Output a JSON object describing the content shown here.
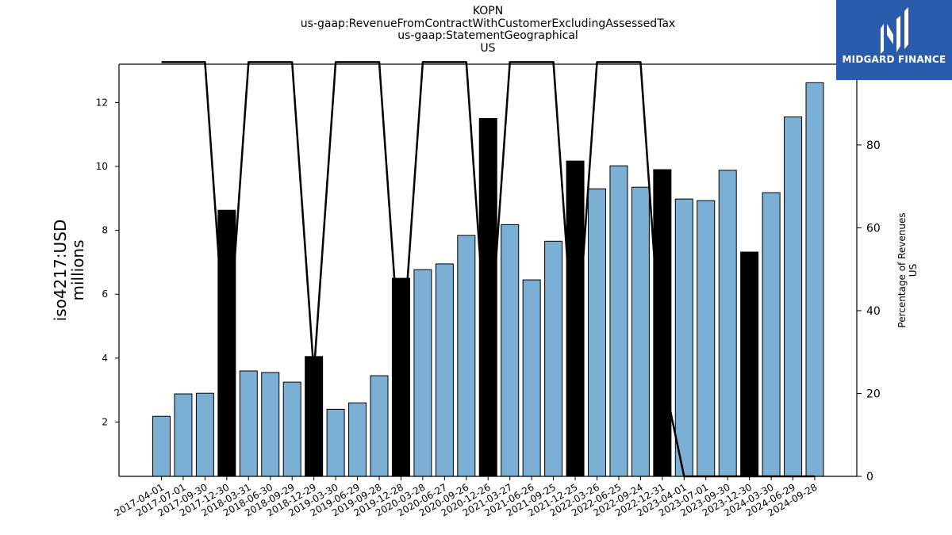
{
  "title_lines": [
    "KOPN",
    "us-gaap:RevenueFromContractWithCustomerExcludingAssessedTax",
    "us-gaap:StatementGeographical",
    "US"
  ],
  "logo": {
    "text": "MIDGARD FINANCE",
    "bg_color": "#2a5cad"
  },
  "chart_data": {
    "type": "bar",
    "ylabel": [
      "iso4217:USD",
      "millions"
    ],
    "y2label": [
      "Percentage of Revenues",
      "US"
    ],
    "ylim": [
      0.3,
      13.2
    ],
    "y2lim": [
      0,
      99.5
    ],
    "yticks": [
      2,
      4,
      6,
      8,
      10,
      12
    ],
    "y2ticks": [
      0,
      20,
      40,
      60,
      80,
      100
    ],
    "categories": [
      "2017-04-01",
      "2017-07-01",
      "2017-09-30",
      "2017-12-30",
      "2018-03-31",
      "2018-06-30",
      "2018-09-29",
      "2018-12-29",
      "2019-03-30",
      "2019-06-29",
      "2019-09-28",
      "2019-12-28",
      "2020-03-28",
      "2020-06-27",
      "2020-09-26",
      "2020-12-26",
      "2021-03-27",
      "2021-06-26",
      "2021-09-25",
      "2021-12-25",
      "2022-03-26",
      "2022-06-25",
      "2022-09-24",
      "2022-12-31",
      "2023-04-01",
      "2023-07-01",
      "2023-09-30",
      "2023-12-30",
      "2024-03-30",
      "2024-06-29",
      "2024-09-28"
    ],
    "values": [
      2.18,
      2.88,
      2.9,
      8.63,
      3.6,
      3.55,
      3.25,
      4.05,
      2.4,
      2.6,
      3.45,
      6.5,
      6.77,
      6.95,
      7.84,
      11.5,
      8.18,
      6.45,
      7.66,
      10.17,
      9.3,
      10.02,
      9.35,
      9.9,
      8.98,
      8.93,
      9.88,
      7.32,
      9.18,
      11.55,
      12.62
    ],
    "highlighted": [
      false,
      false,
      false,
      true,
      false,
      false,
      false,
      true,
      false,
      false,
      false,
      true,
      false,
      false,
      false,
      true,
      false,
      false,
      false,
      true,
      false,
      false,
      false,
      true,
      false,
      false,
      false,
      true,
      false,
      false,
      false
    ],
    "percentage_us": [
      100,
      100,
      100,
      25,
      100,
      100,
      100,
      25,
      100,
      100,
      100,
      25,
      100,
      100,
      100,
      25,
      100,
      100,
      100,
      25,
      100,
      100,
      100,
      25,
      0,
      0,
      0,
      0,
      0,
      0,
      0
    ],
    "colors": {
      "bar": "#7bafd4",
      "highlight": "#000000",
      "line": "#000000"
    }
  }
}
